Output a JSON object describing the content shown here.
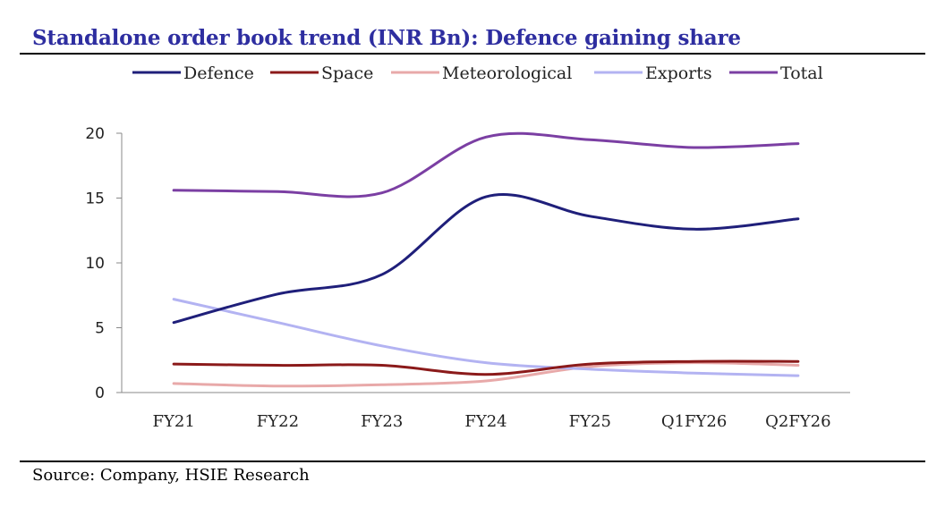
{
  "title": "Standalone order book trend (INR Bn): Defence gaining share",
  "source": "Source: Company, HSIE Research",
  "chart_data": {
    "type": "line",
    "title": "Standalone order book trend (INR Bn): Defence gaining share",
    "categories": [
      "FY21",
      "FY22",
      "FY23",
      "FY24",
      "FY25",
      "Q1FY26",
      "Q2FY26"
    ],
    "ylim": [
      0,
      20
    ],
    "yticks": [
      "0",
      "5",
      "10",
      "15",
      "20"
    ],
    "xlabel": "",
    "ylabel": "",
    "grid": false,
    "legend_position": "top",
    "series": [
      {
        "name": "Defence",
        "color": "#1f1f7a",
        "values": [
          5.4,
          7.6,
          9.1,
          15.1,
          13.6,
          12.6,
          13.4
        ]
      },
      {
        "name": "Space",
        "color": "#8b1a1a",
        "values": [
          2.2,
          2.1,
          2.1,
          1.4,
          2.2,
          2.4,
          2.4
        ]
      },
      {
        "name": "Meteorological",
        "color": "#e8a9a9",
        "values": [
          0.7,
          0.5,
          0.6,
          0.9,
          2.0,
          2.3,
          2.1
        ]
      },
      {
        "name": "Exports",
        "color": "#b3b3f2",
        "values": [
          7.2,
          5.4,
          3.6,
          2.3,
          1.8,
          1.5,
          1.3
        ]
      },
      {
        "name": "Total",
        "color": "#7b3fa3",
        "values": [
          15.6,
          15.5,
          15.4,
          19.7,
          19.5,
          18.9,
          19.2
        ]
      }
    ]
  }
}
